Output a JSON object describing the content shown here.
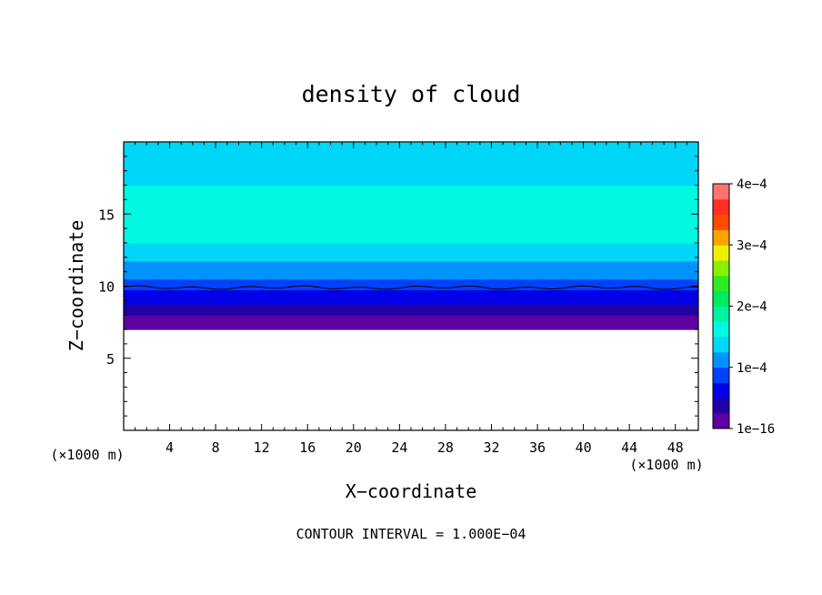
{
  "chart_data": {
    "type": "heatmap",
    "title": "density of cloud",
    "xlabel": "X−coordinate",
    "ylabel": "Z−coordinate",
    "x_unit_left": "(×1000 m)",
    "x_unit_right": "(×1000 m)",
    "xlim": [
      0,
      50
    ],
    "ylim": [
      0,
      20
    ],
    "x_ticks": [
      4,
      8,
      12,
      16,
      20,
      24,
      28,
      32,
      36,
      40,
      44,
      48
    ],
    "y_ticks": [
      5,
      10,
      15
    ],
    "colorbar": {
      "min": 1e-16,
      "max": 0.0004,
      "tick_values": [
        1e-16,
        0.0001,
        0.0002,
        0.0003,
        0.0004
      ],
      "tick_labels": [
        "1e−16",
        "1e−4",
        "2e−4",
        "3e−4",
        "4e−4"
      ],
      "levels": 16
    },
    "profile": {
      "z": [
        7.0,
        7.5,
        8.0,
        8.5,
        9.0,
        9.5,
        10.0,
        10.5,
        11.0,
        11.5,
        12.0,
        12.5,
        13.0,
        14.0,
        15.0,
        16.0,
        16.5,
        17.0,
        18.0,
        19.0,
        20.0
      ],
      "value": [
        2e-06,
        1e-05,
        2.5e-05,
        4e-05,
        5.5e-05,
        7e-05,
        8.5e-05,
        0.0001,
        0.00011,
        0.00012,
        0.00013,
        0.00014,
        0.00015,
        0.00016,
        0.000165,
        0.00016,
        0.000155,
        0.00015,
        0.000145,
        0.00014,
        0.000135
      ]
    },
    "cloud_base_z": 7.0,
    "contour_line": {
      "value": 0.0001,
      "approx_z": 9.9
    },
    "footer": "CONTOUR INTERVAL = 1.000E−04"
  }
}
